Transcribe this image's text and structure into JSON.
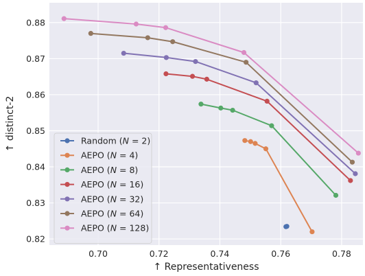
{
  "chart_data": {
    "type": "line",
    "xlabel": "↑ Representativeness",
    "ylabel": "↑ distinct-2",
    "xlim": [
      0.684,
      0.787
    ],
    "ylim": [
      0.8183,
      0.8855
    ],
    "x_ticks": [
      0.7,
      0.72,
      0.74,
      0.76,
      0.78
    ],
    "x_tick_labels": [
      "0.70",
      "0.72",
      "0.74",
      "0.76",
      "0.78"
    ],
    "y_ticks": [
      0.82,
      0.83,
      0.84,
      0.85,
      0.86,
      0.87,
      0.88
    ],
    "y_tick_labels": [
      "0.82",
      "0.83",
      "0.84",
      "0.85",
      "0.86",
      "0.87",
      "0.88"
    ],
    "grid": true,
    "background": "#eaeaf2",
    "legend_position": "lower-left",
    "series": [
      {
        "name": "Random (N = 2)",
        "legend": {
          "base": "Random (",
          "var": "N",
          "rest": " = 2)"
        },
        "color": "#4c72b0",
        "points": [
          [
            0.7617,
            0.8234
          ],
          [
            0.762,
            0.8235
          ]
        ]
      },
      {
        "name": "AEPO (N = 4)",
        "legend": {
          "base": "AEPO (",
          "var": "N",
          "rest": " = 4)"
        },
        "color": "#dd8452",
        "points": [
          [
            0.7482,
            0.8473
          ],
          [
            0.7501,
            0.847
          ],
          [
            0.7516,
            0.8465
          ],
          [
            0.7551,
            0.845
          ],
          [
            0.7703,
            0.822
          ]
        ]
      },
      {
        "name": "AEPO (N = 8)",
        "legend": {
          "base": "AEPO (",
          "var": "N",
          "rest": " = 8)"
        },
        "color": "#55a868",
        "points": [
          [
            0.7338,
            0.8574
          ],
          [
            0.7403,
            0.8563
          ],
          [
            0.7442,
            0.8557
          ],
          [
            0.757,
            0.8514
          ],
          [
            0.7781,
            0.8321
          ]
        ]
      },
      {
        "name": "AEPO (N = 16)",
        "legend": {
          "base": "AEPO (",
          "var": "N",
          "rest": " = 16)"
        },
        "color": "#c44e52",
        "points": [
          [
            0.7223,
            0.8658
          ],
          [
            0.731,
            0.8651
          ],
          [
            0.7357,
            0.8643
          ],
          [
            0.7555,
            0.8582
          ],
          [
            0.7829,
            0.8362
          ]
        ]
      },
      {
        "name": "AEPO (N = 32)",
        "legend": {
          "base": "AEPO (",
          "var": "N",
          "rest": " = 32)"
        },
        "color": "#8172b3",
        "points": [
          [
            0.7084,
            0.8715
          ],
          [
            0.7224,
            0.8703
          ],
          [
            0.732,
            0.8692
          ],
          [
            0.7519,
            0.8633
          ],
          [
            0.7845,
            0.8381
          ]
        ]
      },
      {
        "name": "AEPO (N = 64)",
        "legend": {
          "base": "AEPO (",
          "var": "N",
          "rest": " = 64)"
        },
        "color": "#937860",
        "points": [
          [
            0.6976,
            0.877
          ],
          [
            0.7163,
            0.8758
          ],
          [
            0.7245,
            0.8747
          ],
          [
            0.7486,
            0.869
          ],
          [
            0.7835,
            0.8413
          ]
        ]
      },
      {
        "name": "AEPO (N = 128)",
        "legend": {
          "base": "AEPO (",
          "var": "N",
          "rest": " = 128)"
        },
        "color": "#da8bc3",
        "points": [
          [
            0.6888,
            0.8811
          ],
          [
            0.7125,
            0.8796
          ],
          [
            0.7222,
            0.8786
          ],
          [
            0.7479,
            0.8717
          ],
          [
            0.7855,
            0.8438
          ]
        ]
      }
    ]
  }
}
